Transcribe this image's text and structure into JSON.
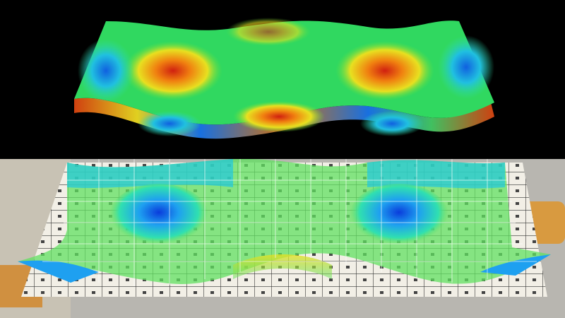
{
  "scene": {
    "top_panel": {
      "background": "#000000",
      "content": "rendered-surface"
    },
    "bottom_panel": {
      "background": "#b8b6b0",
      "content": "ar-surface-overlay-on-grid-board"
    }
  },
  "colormap": [
    "#0a3cdc",
    "#1ea0f0",
    "#20e8a0",
    "#40e040",
    "#e8e020",
    "#f08010",
    "#d02010"
  ],
  "grid": {
    "board_color": "#f2efe6",
    "line_color": "#333333"
  }
}
